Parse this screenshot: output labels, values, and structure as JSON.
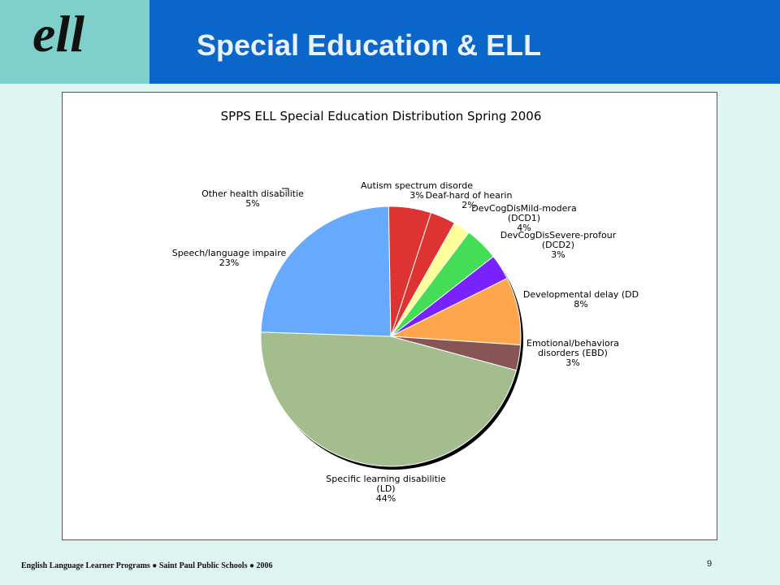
{
  "header": {
    "logo_text": "ell",
    "title": "Special Education & ELL"
  },
  "footer": {
    "text": "English Language Learner Programs ● Saint Paul Public Schools ● 2006",
    "page_number": "9"
  },
  "chart_data": {
    "type": "pie",
    "title": "SPPS ELL Special Education Distribution Spring 2006",
    "slices": [
      {
        "label": [
          "Autism spectrum disorde"
        ],
        "pct_label": "3%",
        "value": 3,
        "color": "#dd3333"
      },
      {
        "label": [
          "Deaf-hard of hearin"
        ],
        "pct_label": "2%",
        "value": 2,
        "color": "#ffff99"
      },
      {
        "label": [
          "DevCogDisMild-modera",
          "(DCD1)"
        ],
        "pct_label": "4%",
        "value": 4,
        "color": "#44dd55"
      },
      {
        "label": [
          "DevCogDisSevere-profour",
          "(DCD2)"
        ],
        "pct_label": "3%",
        "value": 3,
        "color": "#7722ff"
      },
      {
        "label": [
          "Developmental delay (DD"
        ],
        "pct_label": "8%",
        "value": 8,
        "color": "#ffa64d"
      },
      {
        "label": [
          "Emotional/behaviora",
          "disorders (EBD)"
        ],
        "pct_label": "3%",
        "value": 3,
        "color": "#885555"
      },
      {
        "label": [
          "Specific learning disabilitie",
          "(LD)"
        ],
        "pct_label": "44%",
        "value": 44,
        "color": "#a3bd8f"
      },
      {
        "label": [
          "Speech/language impaire"
        ],
        "pct_label": "23%",
        "value": 23,
        "color": "#66aaff"
      },
      {
        "label": [
          "Other health disabilitie"
        ],
        "pct_label": "5%",
        "value": 5,
        "color": "#dd3333"
      }
    ]
  }
}
